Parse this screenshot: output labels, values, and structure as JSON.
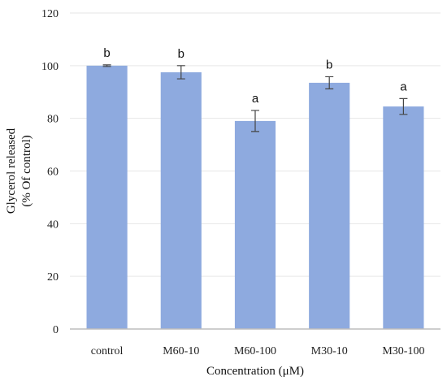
{
  "chart_data": {
    "type": "bar",
    "categories": [
      "control",
      "M60-10",
      "M60-100",
      "M30-10",
      "M30-100"
    ],
    "values": [
      100,
      97.5,
      79,
      93.5,
      84.5
    ],
    "errors": [
      0.3,
      2.5,
      4.0,
      2.3,
      3.0
    ],
    "significance": [
      "b",
      "b",
      "a",
      "b",
      "a"
    ],
    "xlabel": "Concentration (μM)",
    "ylabel_lines": [
      "Glycerol released",
      "(% Of control)"
    ],
    "ylim": [
      0,
      120
    ],
    "yticks": [
      0,
      20,
      40,
      60,
      80,
      100,
      120
    ],
    "grid": true,
    "bar_color": "#8eaadf",
    "error_color": "#444444"
  }
}
